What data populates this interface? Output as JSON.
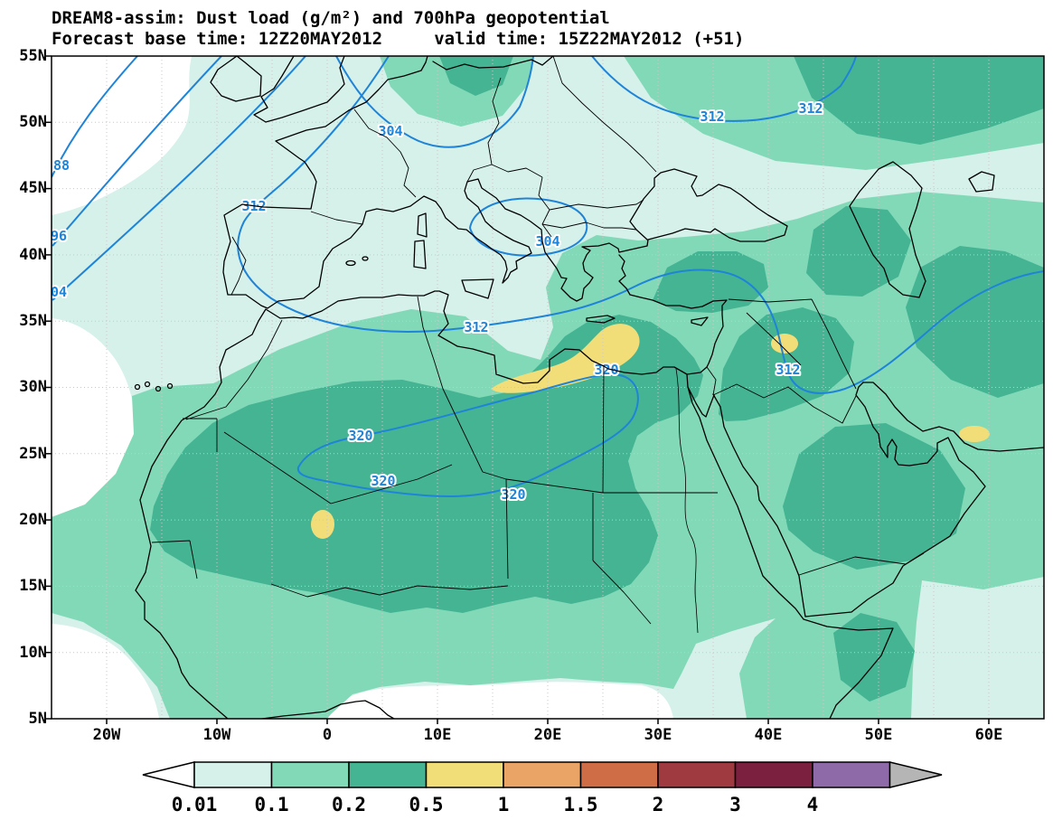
{
  "header": {
    "title": "DREAM8-assim: Dust load (g/m²) and 700hPa geopotential",
    "subtitle": "Forecast base time: 12Z20MAY2012     valid time: 15Z22MAY2012 (+51)"
  },
  "palette": {
    "contour": "#1f84d8",
    "levels": [
      "#ffffff",
      "#d6f0ea",
      "#82d9b8",
      "#45b493",
      "#f2de79",
      "#eaa466",
      "#cf6d47",
      "#9e3a40",
      "#7c2040",
      "#8f6aa8",
      "#b5b5b5"
    ]
  },
  "chart_data": {
    "type": "filled-contour-map",
    "title": "DREAM8-assim: Dust load (g/m²) and 700hPa geopotential",
    "region": "Europe / North Africa / Middle East",
    "x_axis": {
      "ticks": [
        "20W",
        "10W",
        "0",
        "10E",
        "20E",
        "30E",
        "40E",
        "50E",
        "60E"
      ],
      "range_deg": [
        -25,
        65
      ]
    },
    "y_axis": {
      "ticks": [
        "55N",
        "50N",
        "45N",
        "40N",
        "35N",
        "30N",
        "25N",
        "20N",
        "15N",
        "10N",
        "5N"
      ],
      "range_deg": [
        5,
        55
      ]
    },
    "dust_levels_g_m2": [
      "0.01",
      "0.1",
      "0.2",
      "0.5",
      "1",
      "1.5",
      "2",
      "3",
      "4"
    ],
    "geopotential_labels": [
      "88",
      "96",
      "04",
      "312",
      "304",
      "304",
      "312",
      "312",
      "312",
      "320",
      "312",
      "320",
      "320",
      "320"
    ],
    "colorbar": {
      "labels": [
        "0.01",
        "0.1",
        "0.2",
        "0.5",
        "1",
        "1.5",
        "2",
        "3",
        "4"
      ]
    }
  }
}
